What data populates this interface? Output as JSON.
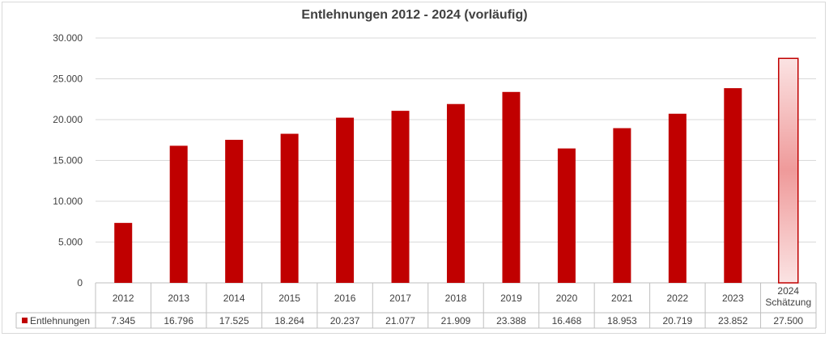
{
  "chart_data": {
    "type": "bar",
    "title": "Entlehnungen 2012 - 2024 (vorläufig)",
    "categories": [
      "2012",
      "2013",
      "2014",
      "2015",
      "2016",
      "2017",
      "2018",
      "2019",
      "2020",
      "2021",
      "2022",
      "2023",
      "2024 Schätzung"
    ],
    "category_lines": [
      [
        "2012"
      ],
      [
        "2013"
      ],
      [
        "2014"
      ],
      [
        "2015"
      ],
      [
        "2016"
      ],
      [
        "2017"
      ],
      [
        "2018"
      ],
      [
        "2019"
      ],
      [
        "2020"
      ],
      [
        "2021"
      ],
      [
        "2022"
      ],
      [
        "2023"
      ],
      [
        "2024",
        "Schätzung"
      ]
    ],
    "series": [
      {
        "name": "Entlehnungen",
        "values": [
          7345,
          16796,
          17525,
          18264,
          20237,
          21077,
          21909,
          23388,
          16468,
          18953,
          20719,
          23852,
          27500
        ],
        "labels": [
          "7.345",
          "16.796",
          "17.525",
          "18.264",
          "20.237",
          "21.077",
          "21.909",
          "23.388",
          "16.468",
          "18.953",
          "20.719",
          "23.852",
          "27.500"
        ],
        "color": "#c00000",
        "estimate_index": 12
      }
    ],
    "yticks": [
      0,
      5000,
      10000,
      15000,
      20000,
      25000,
      30000
    ],
    "ytick_labels": [
      "0",
      "5.000",
      "10.000",
      "15.000",
      "20.000",
      "25.000",
      "30.000"
    ],
    "ylim": [
      0,
      30000
    ],
    "grid": true,
    "legend": "data-table-left"
  }
}
